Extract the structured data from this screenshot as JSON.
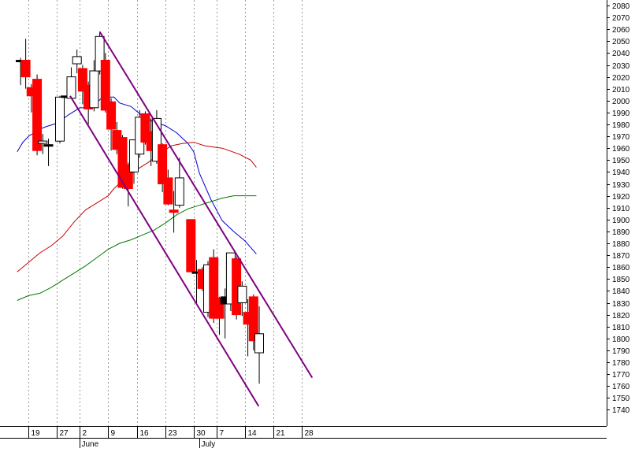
{
  "chart_data": {
    "type": "candlestick",
    "title": "",
    "xlabel": "",
    "ylabel": "",
    "ylim": [
      1740,
      2080
    ],
    "grid": {
      "y": false,
      "x": "dotted vertical"
    },
    "y_axis_position": "right",
    "y_ticks": [
      1740,
      1750,
      1760,
      1770,
      1780,
      1790,
      1800,
      1810,
      1820,
      1830,
      1840,
      1850,
      1860,
      1870,
      1880,
      1890,
      1900,
      1910,
      1920,
      1930,
      1940,
      1950,
      1960,
      1970,
      1980,
      1990,
      2000,
      2010,
      2020,
      2030,
      2040,
      2050,
      2060,
      2070,
      2080
    ],
    "x_ticks": [
      {
        "label": "19",
        "day": 1
      },
      {
        "label": "27",
        "day": 6
      },
      {
        "label": "2",
        "day": 10
      },
      {
        "label": "9",
        "day": 15
      },
      {
        "label": "16",
        "day": 20
      },
      {
        "label": "23",
        "day": 25
      },
      {
        "label": "30",
        "day": 30
      },
      {
        "label": "7",
        "day": 34
      },
      {
        "label": "14",
        "day": 39
      },
      {
        "label": "21",
        "day": 44
      },
      {
        "label": "28",
        "day": 49
      }
    ],
    "month_labels": [
      {
        "label": "June",
        "day": 10
      },
      {
        "label": "July",
        "day": 31
      }
    ],
    "colors": {
      "up": "#ffffff",
      "down": "#ff0000",
      "doji": "#000000",
      "wick": "#000000",
      "ma_fast": "#0000cc",
      "ma_mid": "#cc0000",
      "ma_slow": "#007700",
      "channel": "#800080",
      "grid": "#999999"
    },
    "candles": [
      {
        "day": -0.4,
        "o": 2033,
        "h": 2036,
        "l": 2013,
        "c": 2034
      },
      {
        "day": 0.5,
        "o": 2034,
        "h": 2052,
        "l": 2010,
        "c": 2020
      },
      {
        "day": 1.5,
        "o": 2011,
        "h": 2014,
        "l": 1990,
        "c": 2004
      },
      {
        "day": 2.5,
        "o": 2018,
        "h": 2022,
        "l": 1954,
        "c": 1958
      },
      {
        "day": 3.5,
        "o": 1964,
        "h": 1972,
        "l": 1955,
        "c": 1966
      },
      {
        "day": 4.5,
        "o": 1963,
        "h": 1968,
        "l": 1945,
        "c": 1963
      },
      {
        "day": 6.5,
        "o": 1966,
        "h": 2004,
        "l": 1964,
        "c": 2003
      },
      {
        "day": 7.5,
        "o": 2003,
        "h": 2004,
        "l": 2002,
        "c": 2004
      },
      {
        "day": 8.5,
        "o": 2002,
        "h": 2028,
        "l": 2002,
        "c": 2020
      },
      {
        "day": 9.5,
        "o": 2031,
        "h": 2043,
        "l": 2023,
        "c": 2037
      },
      {
        "day": 10.5,
        "o": 2027,
        "h": 2030,
        "l": 1997,
        "c": 2008
      },
      {
        "day": 11.5,
        "o": 2013,
        "h": 2016,
        "l": 1980,
        "c": 1993
      },
      {
        "day": 12.5,
        "o": 1994,
        "h": 2034,
        "l": 1991,
        "c": 2025
      },
      {
        "day": 13.5,
        "o": 2025,
        "h": 2058,
        "l": 2022,
        "c": 2054
      },
      {
        "day": 14.5,
        "o": 2034,
        "h": 2040,
        "l": 1990,
        "c": 1992
      },
      {
        "day": 15.5,
        "o": 1999,
        "h": 2002,
        "l": 1958,
        "c": 1976
      },
      {
        "day": 16.5,
        "o": 1975,
        "h": 1982,
        "l": 1955,
        "c": 1959
      },
      {
        "day": 17.5,
        "o": 1969,
        "h": 1971,
        "l": 1926,
        "c": 1927
      },
      {
        "day": 18.5,
        "o": 1946,
        "h": 1948,
        "l": 1911,
        "c": 1926
      },
      {
        "day": 19.5,
        "o": 1940,
        "h": 1967,
        "l": 1930,
        "c": 1967
      },
      {
        "day": 20.5,
        "o": 1955,
        "h": 1992,
        "l": 1952,
        "c": 1986
      },
      {
        "day": 21.5,
        "o": 1989,
        "h": 1991,
        "l": 1963,
        "c": 1965
      },
      {
        "day": 22.5,
        "o": 1974,
        "h": 1985,
        "l": 1945,
        "c": 1958
      },
      {
        "day": 23.5,
        "o": 1949,
        "h": 1992,
        "l": 1947,
        "c": 1985
      },
      {
        "day": 24.5,
        "o": 1963,
        "h": 1964,
        "l": 1923,
        "c": 1930
      },
      {
        "day": 25.5,
        "o": 1935,
        "h": 1942,
        "l": 1912,
        "c": 1913
      },
      {
        "day": 26.5,
        "o": 1908,
        "h": 1924,
        "l": 1889,
        "c": 1906
      },
      {
        "day": 27.5,
        "o": 1912,
        "h": 1952,
        "l": 1910,
        "c": 1935
      },
      {
        "day": 29.5,
        "o": 1900,
        "h": 1900,
        "l": 1856,
        "c": 1856
      },
      {
        "day": 30.5,
        "o": 1855,
        "h": 1866,
        "l": 1829,
        "c": 1856
      },
      {
        "day": 31.5,
        "o": 1858,
        "h": 1860,
        "l": 1840,
        "c": 1842
      },
      {
        "day": 32.5,
        "o": 1822,
        "h": 1865,
        "l": 1818,
        "c": 1862
      },
      {
        "day": 33.5,
        "o": 1868,
        "h": 1875,
        "l": 1813,
        "c": 1817
      },
      {
        "day": 34.5,
        "o": 1834,
        "h": 1835,
        "l": 1803,
        "c": 1817
      },
      {
        "day": 35.5,
        "o": 1829,
        "h": 1842,
        "l": 1800,
        "c": 1835
      },
      {
        "day": 36.5,
        "o": 1829,
        "h": 1872,
        "l": 1823,
        "c": 1872
      },
      {
        "day": 37.5,
        "o": 1867,
        "h": 1869,
        "l": 1816,
        "c": 1820
      },
      {
        "day": 38.5,
        "o": 1830,
        "h": 1848,
        "l": 1819,
        "c": 1844
      },
      {
        "day": 39.5,
        "o": 1822,
        "h": 1833,
        "l": 1785,
        "c": 1812
      },
      {
        "day": 40.5,
        "o": 1835,
        "h": 1837,
        "l": 1790,
        "c": 1798
      },
      {
        "day": 41.5,
        "o": 1788,
        "h": 1827,
        "l": 1762,
        "c": 1804
      }
    ],
    "series": [
      {
        "key": "ma_fast",
        "points": [
          [
            -1,
            1957
          ],
          [
            0,
            1965
          ],
          [
            1,
            1970
          ],
          [
            2,
            1973
          ],
          [
            3,
            1976
          ],
          [
            4,
            1978
          ],
          [
            6,
            1981
          ],
          [
            8,
            1988
          ],
          [
            10,
            1994
          ],
          [
            12,
            1994
          ],
          [
            14,
            2003
          ],
          [
            16,
            2003
          ],
          [
            17,
            1998
          ],
          [
            19,
            1995
          ],
          [
            21,
            1987
          ],
          [
            23,
            1982
          ],
          [
            25,
            1979
          ],
          [
            27,
            1973
          ],
          [
            29,
            1964
          ],
          [
            30,
            1957
          ],
          [
            31,
            1939
          ],
          [
            33,
            1917
          ],
          [
            35,
            1899
          ],
          [
            37,
            1890
          ],
          [
            39,
            1882
          ],
          [
            41,
            1871
          ]
        ]
      },
      {
        "key": "ma_mid",
        "points": [
          [
            -1,
            1856
          ],
          [
            1,
            1864
          ],
          [
            3,
            1872
          ],
          [
            5,
            1878
          ],
          [
            7,
            1886
          ],
          [
            9,
            1898
          ],
          [
            11,
            1908
          ],
          [
            13,
            1914
          ],
          [
            15,
            1920
          ],
          [
            16,
            1926
          ],
          [
            18,
            1935
          ],
          [
            20,
            1942
          ],
          [
            22,
            1948
          ],
          [
            24,
            1955
          ],
          [
            26,
            1962
          ],
          [
            28,
            1964
          ],
          [
            30,
            1965
          ],
          [
            32,
            1962
          ],
          [
            35,
            1960
          ],
          [
            38,
            1955
          ],
          [
            40,
            1950
          ],
          [
            41,
            1944
          ]
        ]
      },
      {
        "key": "ma_slow",
        "points": [
          [
            -1,
            1832
          ],
          [
            1,
            1836
          ],
          [
            3,
            1838
          ],
          [
            5,
            1843
          ],
          [
            7,
            1849
          ],
          [
            9,
            1855
          ],
          [
            11,
            1861
          ],
          [
            13,
            1868
          ],
          [
            15,
            1875
          ],
          [
            17,
            1880
          ],
          [
            19,
            1883
          ],
          [
            21,
            1887
          ],
          [
            23,
            1891
          ],
          [
            25,
            1897
          ],
          [
            27,
            1904
          ],
          [
            29,
            1909
          ],
          [
            31,
            1912
          ],
          [
            33,
            1915
          ],
          [
            35,
            1918
          ],
          [
            37,
            1920
          ],
          [
            39,
            1920
          ],
          [
            41,
            1920
          ]
        ]
      }
    ],
    "trendlines": [
      {
        "from": [
          13.5,
          2058
        ],
        "to": [
          50.8,
          1767
        ]
      },
      {
        "from": [
          8.3,
          2004
        ],
        "to": [
          41.4,
          1743
        ]
      }
    ]
  }
}
